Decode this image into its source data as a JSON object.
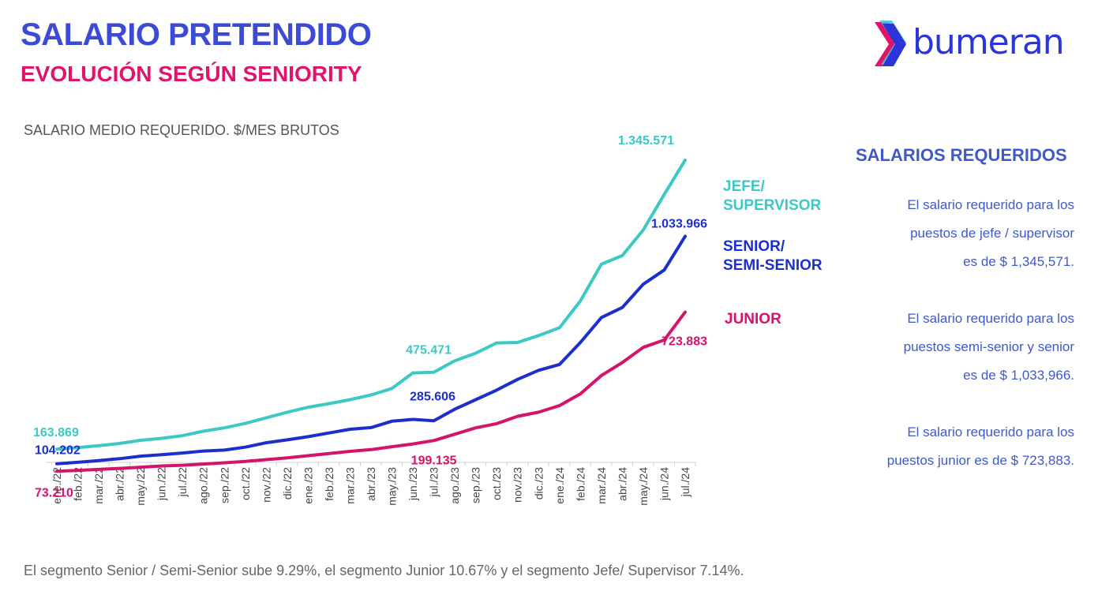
{
  "header": {
    "title": "SALARIO PRETENDIDO",
    "subtitle": "EVOLUCIÓN SEGÚN SENIORITY"
  },
  "logo": {
    "text": "bumeran"
  },
  "chart_caption": "SALARIO MEDIO REQUERIDO. $/MES BRUTOS",
  "colors": {
    "jefe": "#3cc8c4",
    "senior": "#1a2fcc",
    "junior": "#d4136a",
    "title": "#3b4bd4",
    "subtitle": "#e0146b"
  },
  "series_labels": {
    "jefe": [
      "JEFE/",
      "SUPERVISOR"
    ],
    "senior": [
      "SENIOR/",
      "SEMI-SENIOR"
    ],
    "junior": [
      "JUNIOR"
    ]
  },
  "panel": {
    "title": "SALARIOS REQUERIDOS",
    "jefe": [
      "El salario requerido para los",
      "puestos de jefe / supervisor",
      "es de $ 1,345,571."
    ],
    "senior": [
      "El salario requerido para los",
      "puestos semi-senior y senior",
      "es de $ 1,033,966."
    ],
    "junior": [
      "El salario requerido para los",
      "puestos junior es de $ 723,883."
    ]
  },
  "footnote": "El segmento Senior / Semi-Senior sube 9.29%, el segmento Junior  10.67% y el segmento Jefe/ Supervisor 7.14%.",
  "chart_data": {
    "type": "line",
    "title": "SALARIO MEDIO REQUERIDO. $/MES BRUTOS",
    "xlabel": "",
    "ylabel": "$/mes brutos",
    "ylim": [
      0,
      1500000
    ],
    "categories": [
      "ene./22",
      "feb./22",
      "mar./22",
      "abr./22",
      "may./22",
      "jun./22",
      "jul./22",
      "ago./22",
      "sep./22",
      "oct./22",
      "nov./22",
      "dic./22",
      "ene./23",
      "feb./23",
      "mar./23",
      "abr./23",
      "may./23",
      "jun./23",
      "jul./23",
      "ago./23",
      "sep./23",
      "oct./23",
      "nov./23",
      "dic./23",
      "ene./24",
      "feb./24",
      "mar./24",
      "abr./24",
      "may./24",
      "jun./24",
      "jul./24"
    ],
    "series": [
      {
        "name": "JEFE/ SUPERVISOR",
        "key": "jefe",
        "values": [
          163869,
          170000,
          178000,
          187000,
          200000,
          208000,
          219000,
          237000,
          251000,
          269000,
          292000,
          315000,
          335000,
          350000,
          366000,
          385000,
          412000,
          475471,
          478000,
          525000,
          556000,
          598000,
          600000,
          628000,
          660000,
          770000,
          920000,
          955000,
          1060000,
          1205000,
          1345571
        ]
      },
      {
        "name": "SENIOR/ SEMI-SENIOR",
        "key": "senior",
        "values": [
          104202,
          110000,
          117000,
          125000,
          135000,
          141000,
          148000,
          156000,
          160000,
          172000,
          190000,
          202000,
          215000,
          230000,
          245000,
          252000,
          278000,
          285606,
          280000,
          327000,
          366000,
          405000,
          449000,
          486000,
          510000,
          600000,
          702000,
          743000,
          838000,
          896000,
          1033966
        ]
      },
      {
        "name": "JUNIOR",
        "key": "junior",
        "values": [
          73210,
          77000,
          81000,
          85000,
          90000,
          95000,
          98000,
          103000,
          108000,
          114000,
          121000,
          128000,
          137000,
          146000,
          155000,
          162000,
          174000,
          185000,
          199135,
          225000,
          251000,
          268000,
          298000,
          315000,
          342000,
          390000,
          465000,
          518000,
          580000,
          610000,
          723883
        ]
      }
    ],
    "data_labels": [
      {
        "series": "jefe",
        "index": 0,
        "text": "163.869"
      },
      {
        "series": "jefe",
        "index": 17,
        "text": "475.471"
      },
      {
        "series": "jefe",
        "index": 30,
        "text": "1.345.571"
      },
      {
        "series": "senior",
        "index": 0,
        "text": "104.202"
      },
      {
        "series": "senior",
        "index": 17,
        "text": "285.606"
      },
      {
        "series": "senior",
        "index": 30,
        "text": "1.033.966"
      },
      {
        "series": "junior",
        "index": 0,
        "text": "73.210"
      },
      {
        "series": "junior",
        "index": 18,
        "text": "199.135"
      },
      {
        "series": "junior",
        "index": 30,
        "text": "723.883"
      }
    ],
    "grid": false,
    "legend": "right"
  }
}
